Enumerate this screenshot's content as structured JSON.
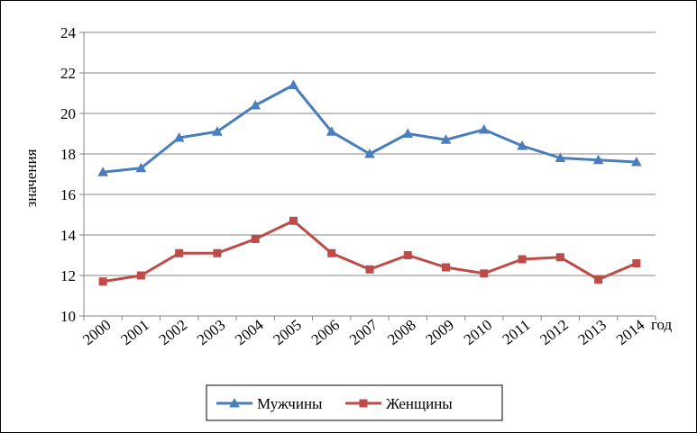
{
  "chart_data": {
    "type": "line",
    "title": "",
    "xlabel": "год",
    "ylabel": "значения",
    "ylim": [
      10,
      24
    ],
    "yticks": [
      10,
      12,
      14,
      16,
      18,
      20,
      22,
      24
    ],
    "grid": "horizontal",
    "legend_position": "bottom",
    "categories": [
      "2000",
      "2001",
      "2002",
      "2003",
      "2004",
      "2005",
      "2006",
      "2007",
      "2008",
      "2009",
      "2010",
      "2011",
      "2012",
      "2013",
      "2014"
    ],
    "series": [
      {
        "name": "Мужчины",
        "color": "#4a7ebb",
        "marker": "triangle",
        "values": [
          17.1,
          17.3,
          18.8,
          19.1,
          20.4,
          21.4,
          19.1,
          18.0,
          19.0,
          18.7,
          19.2,
          18.4,
          17.8,
          17.7,
          17.6
        ]
      },
      {
        "name": "Женщины",
        "color": "#be4b48",
        "marker": "square",
        "values": [
          11.7,
          12.0,
          13.1,
          13.1,
          13.8,
          14.7,
          13.1,
          12.3,
          13.0,
          12.4,
          12.1,
          12.8,
          12.9,
          11.8,
          12.6
        ]
      }
    ]
  }
}
